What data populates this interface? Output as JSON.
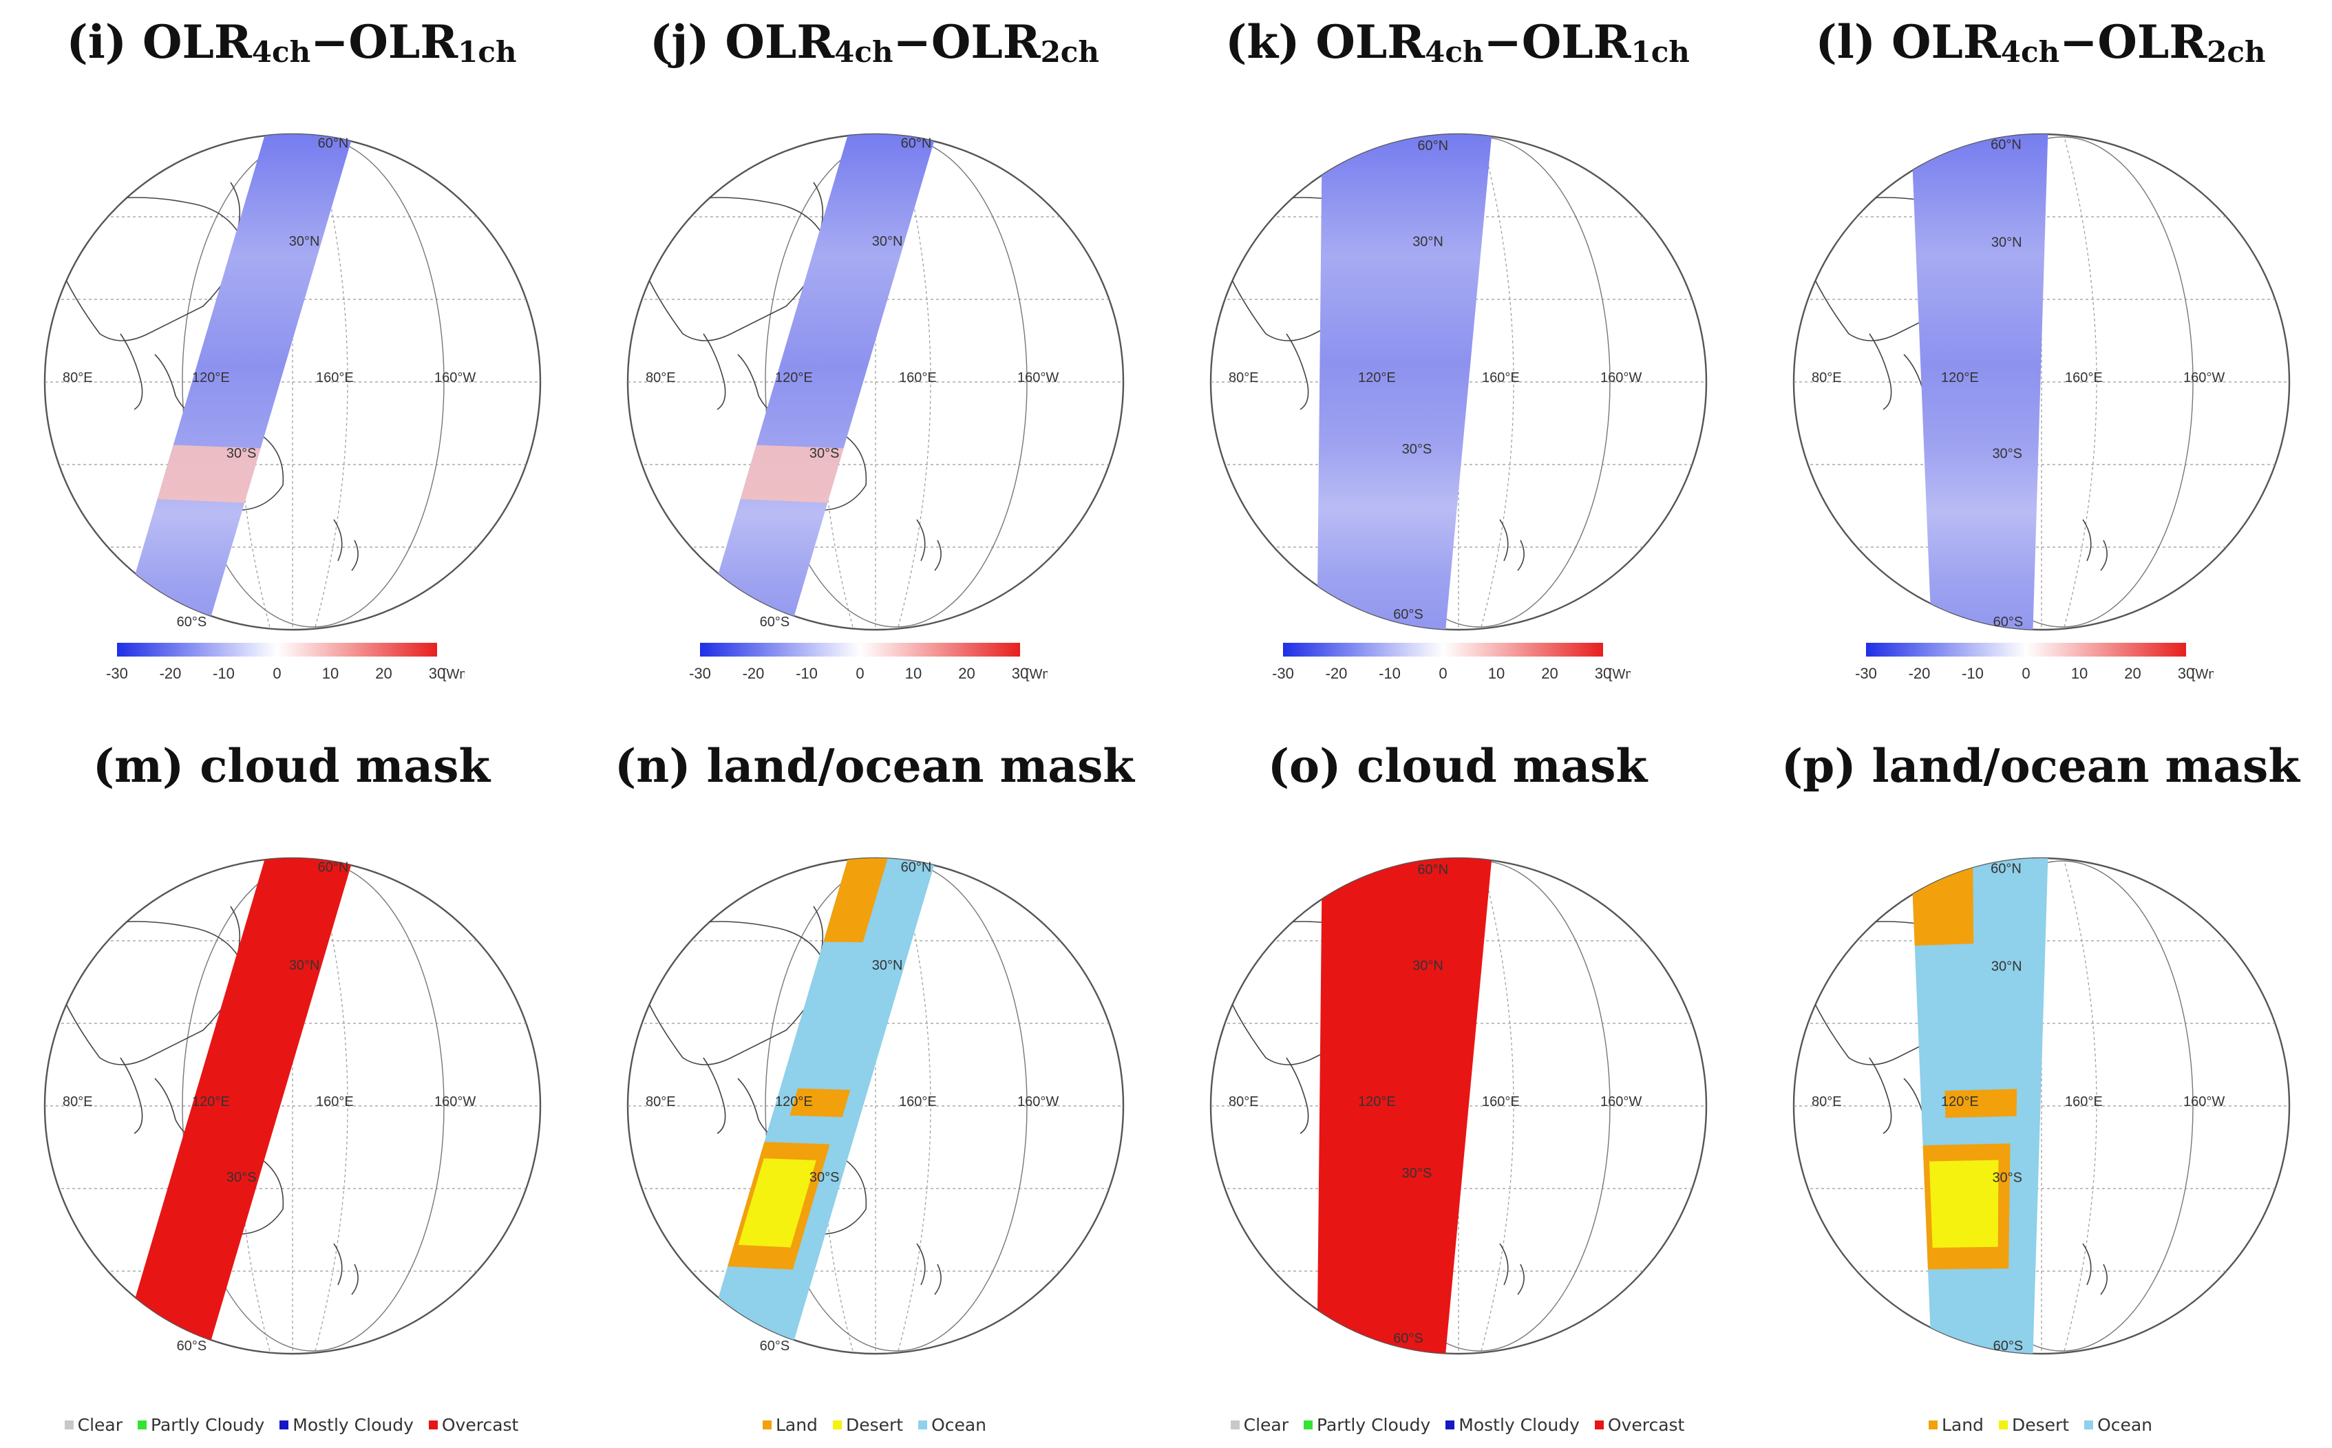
{
  "panels": [
    {
      "letter": "i",
      "name": "OLR",
      "sub1": "4ch",
      "sep": "−",
      "name2": "OLR",
      "sub2": "1ch",
      "kind": "olr",
      "tilt": 1
    },
    {
      "letter": "j",
      "name": "OLR",
      "sub1": "4ch",
      "sep": "−",
      "name2": "OLR",
      "sub2": "2ch",
      "kind": "olr",
      "tilt": 1
    },
    {
      "letter": "k",
      "name": "OLR",
      "sub1": "4ch",
      "sep": "−",
      "name2": "OLR",
      "sub2": "1ch",
      "kind": "olr",
      "tilt": 2
    },
    {
      "letter": "l",
      "name": "OLR",
      "sub1": "4ch",
      "sep": "−",
      "name2": "OLR",
      "sub2": "2ch",
      "kind": "olr",
      "tilt": 3
    },
    {
      "letter": "m",
      "text": "cloud mask",
      "kind": "cloud",
      "tilt": 1
    },
    {
      "letter": "n",
      "text": "land/ocean mask",
      "kind": "land",
      "tilt": 1
    },
    {
      "letter": "o",
      "text": "cloud mask",
      "kind": "cloud",
      "tilt": 2
    },
    {
      "letter": "p",
      "text": "land/ocean mask",
      "kind": "land",
      "tilt": 3
    }
  ],
  "map_labels": {
    "lat_60n": "60°N",
    "lat_30n": "30°N",
    "lat_30s": "30°S",
    "lat_60s": "60°S",
    "lon_80e": "80°E",
    "lon_120e": "120°E",
    "lon_160e": "160°E",
    "lon_160w": "160°W"
  },
  "colorbar": {
    "ticks": [
      "-30",
      "-20",
      "-10",
      "0",
      "10",
      "20",
      "30"
    ],
    "unit": "[Wm⁻²]",
    "colors": {
      "low": "#1f2fe6",
      "mid": "#ffffff",
      "high": "#e6201f"
    }
  },
  "cloud_legend": [
    {
      "label": "Clear",
      "color": "#c8c8c8"
    },
    {
      "label": "Partly Cloudy",
      "color": "#35e335"
    },
    {
      "label": "Mostly Cloudy",
      "color": "#1717c8"
    },
    {
      "label": "Overcast",
      "color": "#e81515"
    }
  ],
  "land_legend": [
    {
      "label": "Land",
      "color": "#f2a00c"
    },
    {
      "label": "Desert",
      "color": "#f4f20e"
    },
    {
      "label": "Ocean",
      "color": "#8fd0ea"
    }
  ]
}
